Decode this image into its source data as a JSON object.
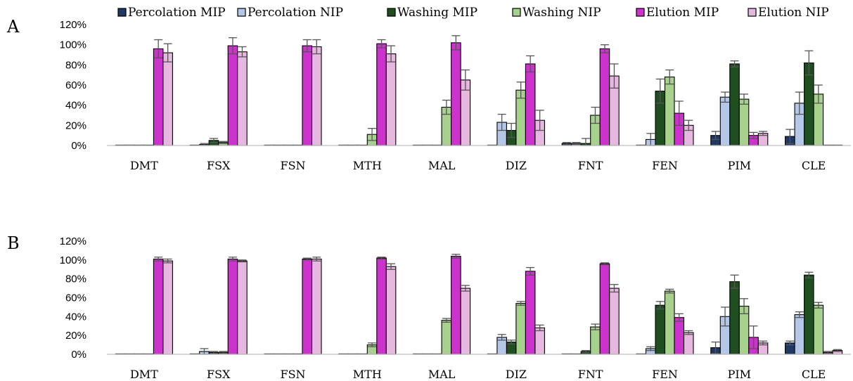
{
  "chart_data": [
    {
      "type": "bar",
      "panel_label": "A",
      "categories": [
        "DMT",
        "FSX",
        "FSN",
        "MTH",
        "MAL",
        "DIZ",
        "FNT",
        "FEN",
        "PIM",
        "CLE"
      ],
      "y_ticks": [
        "0%",
        "20%",
        "40%",
        "60%",
        "80%",
        "100%",
        "120%"
      ],
      "ylim": [
        0,
        120
      ],
      "grid": false,
      "legend_position": "top",
      "series": [
        {
          "name": "Percolation MIP",
          "color": "#203864",
          "values": [
            0,
            0,
            0,
            0,
            0,
            0,
            2,
            0,
            10,
            9
          ],
          "errors": [
            0,
            0,
            0,
            0,
            0,
            0,
            1,
            0,
            4,
            7
          ]
        },
        {
          "name": "Percolation NIP",
          "color": "#b4c7e7",
          "values": [
            0,
            1,
            0,
            0,
            0,
            23,
            2,
            6,
            48,
            42
          ],
          "errors": [
            0,
            1,
            0,
            0,
            0,
            8,
            1,
            6,
            5,
            11
          ]
        },
        {
          "name": "Washing MIP",
          "color": "#1f4e1f",
          "values": [
            0,
            5,
            0,
            0,
            0,
            15,
            2,
            54,
            81,
            82
          ],
          "errors": [
            0,
            2,
            0,
            0,
            0,
            7,
            5,
            12,
            3,
            12
          ]
        },
        {
          "name": "Washing NIP",
          "color": "#a9d18e",
          "values": [
            0,
            3,
            0,
            11,
            38,
            55,
            30,
            68,
            46,
            51
          ],
          "errors": [
            0,
            1,
            0,
            6,
            7,
            8,
            8,
            7,
            5,
            9
          ]
        },
        {
          "name": "Elution MIP",
          "color": "#cc33cc",
          "values": [
            96,
            99,
            99,
            101,
            102,
            81,
            96,
            32,
            10,
            0
          ],
          "errors": [
            9,
            8,
            6,
            4,
            7,
            8,
            4,
            12,
            3,
            0
          ]
        },
        {
          "name": "Elution NIP",
          "color": "#e6b8e0",
          "values": [
            92,
            93,
            98,
            91,
            65,
            25,
            69,
            20,
            12,
            0
          ],
          "errors": [
            9,
            5,
            7,
            8,
            10,
            10,
            12,
            5,
            2,
            0
          ]
        }
      ]
    },
    {
      "type": "bar",
      "panel_label": "B",
      "categories": [
        "DMT",
        "FSX",
        "FSN",
        "MTH",
        "MAL",
        "DIZ",
        "FNT",
        "FEN",
        "PIM",
        "CLE"
      ],
      "y_ticks": [
        "0%",
        "20%",
        "40%",
        "60%",
        "80%",
        "100%",
        "120%"
      ],
      "ylim": [
        0,
        120
      ],
      "grid": false,
      "series": [
        {
          "name": "Percolation MIP",
          "color": "#203864",
          "values": [
            0,
            0,
            0,
            0,
            0,
            0,
            0,
            0,
            7,
            12
          ],
          "errors": [
            0,
            0,
            0,
            0,
            0,
            0,
            0,
            0,
            6,
            2
          ]
        },
        {
          "name": "Percolation NIP",
          "color": "#b4c7e7",
          "values": [
            0,
            3,
            0,
            0,
            0,
            18,
            0,
            6,
            40,
            42
          ],
          "errors": [
            0,
            3,
            0,
            0,
            0,
            3,
            0,
            2,
            10,
            3
          ]
        },
        {
          "name": "Washing MIP",
          "color": "#1f4e1f",
          "values": [
            0,
            2,
            0,
            0,
            0,
            13,
            3,
            52,
            77,
            84
          ],
          "errors": [
            0,
            1,
            0,
            0,
            0,
            2,
            1,
            4,
            7,
            3
          ]
        },
        {
          "name": "Washing NIP",
          "color": "#a9d18e",
          "values": [
            0,
            2,
            0,
            10,
            36,
            54,
            29,
            67,
            51,
            52
          ],
          "errors": [
            0,
            1,
            0,
            2,
            2,
            2,
            3,
            2,
            8,
            3
          ]
        },
        {
          "name": "Elution MIP",
          "color": "#cc33cc",
          "values": [
            101,
            101,
            101,
            102,
            104,
            88,
            96,
            39,
            18,
            2
          ],
          "errors": [
            2,
            2,
            1,
            1,
            2,
            4,
            1,
            4,
            12,
            1
          ]
        },
        {
          "name": "Elution NIP",
          "color": "#e6b8e0",
          "values": [
            99,
            99,
            101,
            93,
            70,
            28,
            70,
            23,
            12,
            4
          ],
          "errors": [
            2,
            1,
            2,
            3,
            3,
            3,
            4,
            2,
            2,
            1
          ]
        }
      ]
    }
  ]
}
